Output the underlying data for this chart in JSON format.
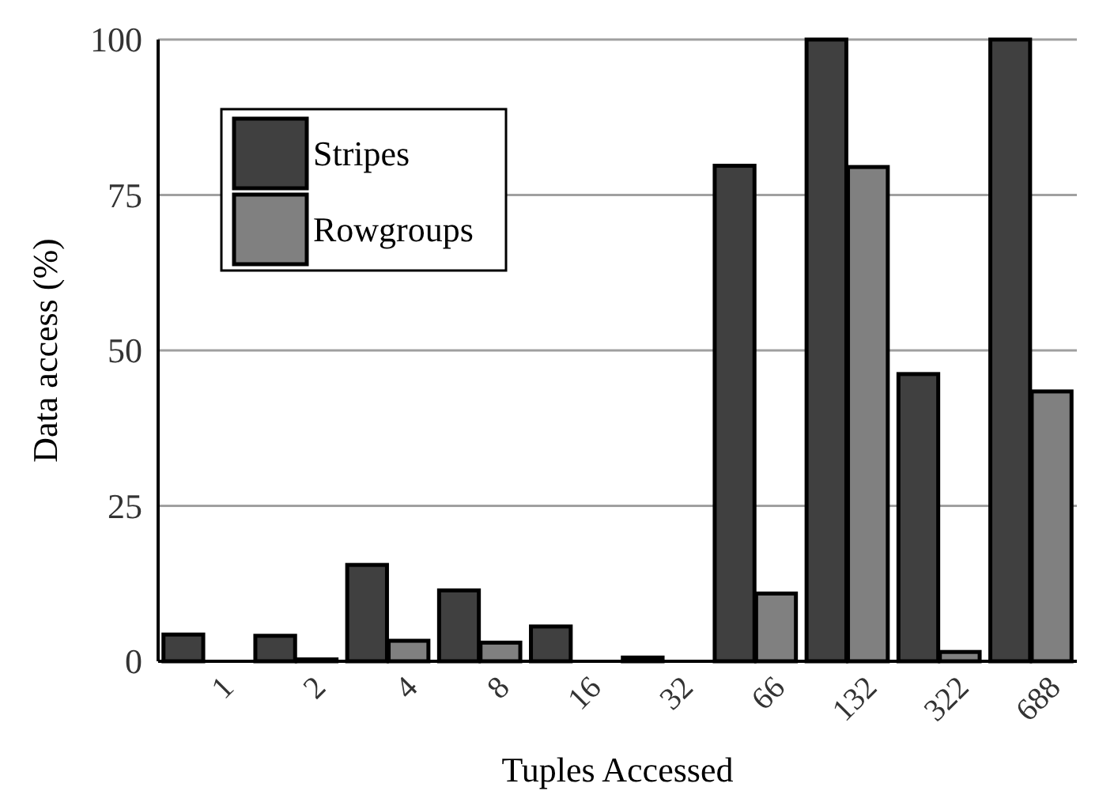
{
  "chart_data": {
    "type": "bar",
    "xlabel": "Tuples Accessed",
    "ylabel": "Data access (%)",
    "categories": [
      "1",
      "2",
      "4",
      "8",
      "16",
      "32",
      "66",
      "132",
      "322",
      "688"
    ],
    "series": [
      {
        "name": "Stripes",
        "color": "#404040",
        "values": [
          4.3,
          4.1,
          15.5,
          11.4,
          5.6,
          0.6,
          79.7,
          100,
          46.2,
          100
        ]
      },
      {
        "name": "Rowgroups",
        "color": "#808080",
        "values": [
          null,
          0.3,
          3.3,
          3.0,
          null,
          null,
          10.9,
          79.5,
          1.5,
          43.4
        ]
      }
    ],
    "ylim": [
      0,
      100
    ],
    "yticks": [
      0,
      25,
      50,
      75,
      100
    ],
    "grid": "y",
    "legend": "top left"
  }
}
